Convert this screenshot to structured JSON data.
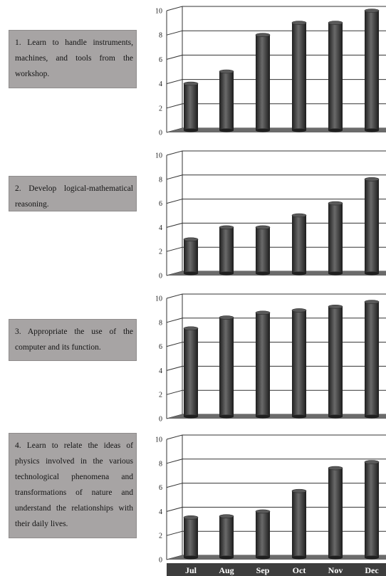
{
  "objectives": [
    "1. Learn to handle instruments, machines, and tools from the workshop.",
    "2. Develop logical-mathematical reasoning.",
    "3. Appropriate the use of the computer and its function.",
    "4. Learn to relate the ideas of physics involved in the various technological phenomena and transformations of nature and understand the relationships with their daily lives."
  ],
  "chart_data": [
    {
      "type": "bar",
      "categories": [
        "Jul",
        "Aug",
        "Sep",
        "Oct",
        "Nov",
        "Dec"
      ],
      "values": [
        4,
        5,
        8,
        9,
        9,
        10
      ],
      "ylim": [
        0,
        10
      ],
      "yticks": [
        0,
        2,
        4,
        6,
        8,
        10
      ],
      "grid": true
    },
    {
      "type": "bar",
      "categories": [
        "Jul",
        "Aug",
        "Sep",
        "Oct",
        "Nov",
        "Dec"
      ],
      "values": [
        3,
        4,
        4,
        5,
        6,
        8
      ],
      "ylim": [
        0,
        10
      ],
      "yticks": [
        0,
        2,
        4,
        6,
        8,
        10
      ],
      "grid": true
    },
    {
      "type": "bar",
      "categories": [
        "Jul",
        "Aug",
        "Sep",
        "Oct",
        "Nov",
        "Dec"
      ],
      "values": [
        7.5,
        8.4,
        8.8,
        9.0,
        9.3,
        9.7
      ],
      "ylim": [
        0,
        10
      ],
      "yticks": [
        0,
        2,
        4,
        6,
        8,
        10
      ],
      "grid": true
    },
    {
      "type": "bar",
      "categories": [
        "Jul",
        "Aug",
        "Sep",
        "Oct",
        "Nov",
        "Dec"
      ],
      "values": [
        3.5,
        3.6,
        4.0,
        5.7,
        7.6,
        8.1
      ],
      "ylim": [
        0,
        10
      ],
      "yticks": [
        0,
        2,
        4,
        6,
        8,
        10
      ],
      "grid": true
    }
  ],
  "colors": {
    "bar": "#3a3a3a",
    "floor": "#6b6b6b",
    "wall_line": "#333333",
    "category_band": "#3d3d3d",
    "objective_box": "#a7a4a4"
  }
}
